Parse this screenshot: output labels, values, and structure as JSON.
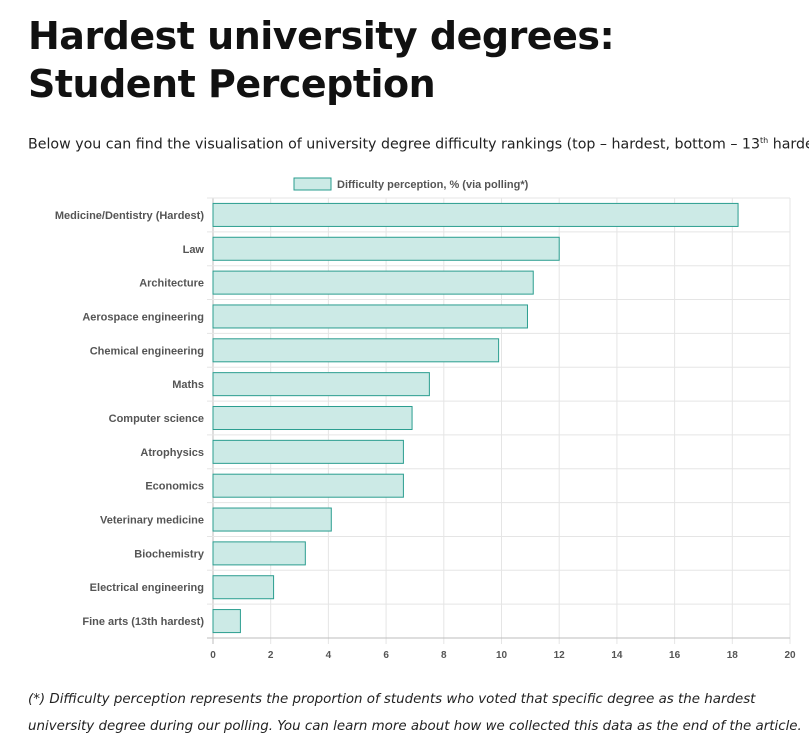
{
  "page": {
    "title": "Hardest university degrees: Student Perception",
    "intro_before": "Below you can find the visualisation of university degree difficulty rankings (top – hardest, bottom – 13",
    "intro_sup": "th",
    "intro_after": " hardest).",
    "footnote": "(*) Difficulty perception represents the proportion of students who voted that specific degree as the hardest university degree during our polling. You can learn more about how we collected this data as the end of the article."
  },
  "chart_data": {
    "type": "bar",
    "orientation": "horizontal",
    "categories": [
      "Medicine/Dentistry (Hardest)",
      "Law",
      "Architecture",
      "Aerospace engineering",
      "Chemical engineering",
      "Maths",
      "Computer science",
      "Atrophysics",
      "Economics",
      "Veterinary medicine",
      "Biochemistry",
      "Electrical engineering",
      "Fine arts (13th hardest)"
    ],
    "series": [
      {
        "name": "Difficulty perception, % (via polling*)",
        "values": [
          18.2,
          12.0,
          11.1,
          10.9,
          9.9,
          7.5,
          6.9,
          6.6,
          6.6,
          4.1,
          3.2,
          2.1,
          0.95
        ]
      }
    ],
    "xlim": [
      0,
      20
    ],
    "xticks": [
      0,
      2,
      4,
      6,
      8,
      10,
      12,
      14,
      16,
      18,
      20
    ],
    "grid": true,
    "legend_position": "top",
    "colors": {
      "bar_fill": "#cceae6",
      "bar_stroke": "#2a9d8f",
      "grid": "#e5e5e5",
      "text": "#555555"
    }
  }
}
